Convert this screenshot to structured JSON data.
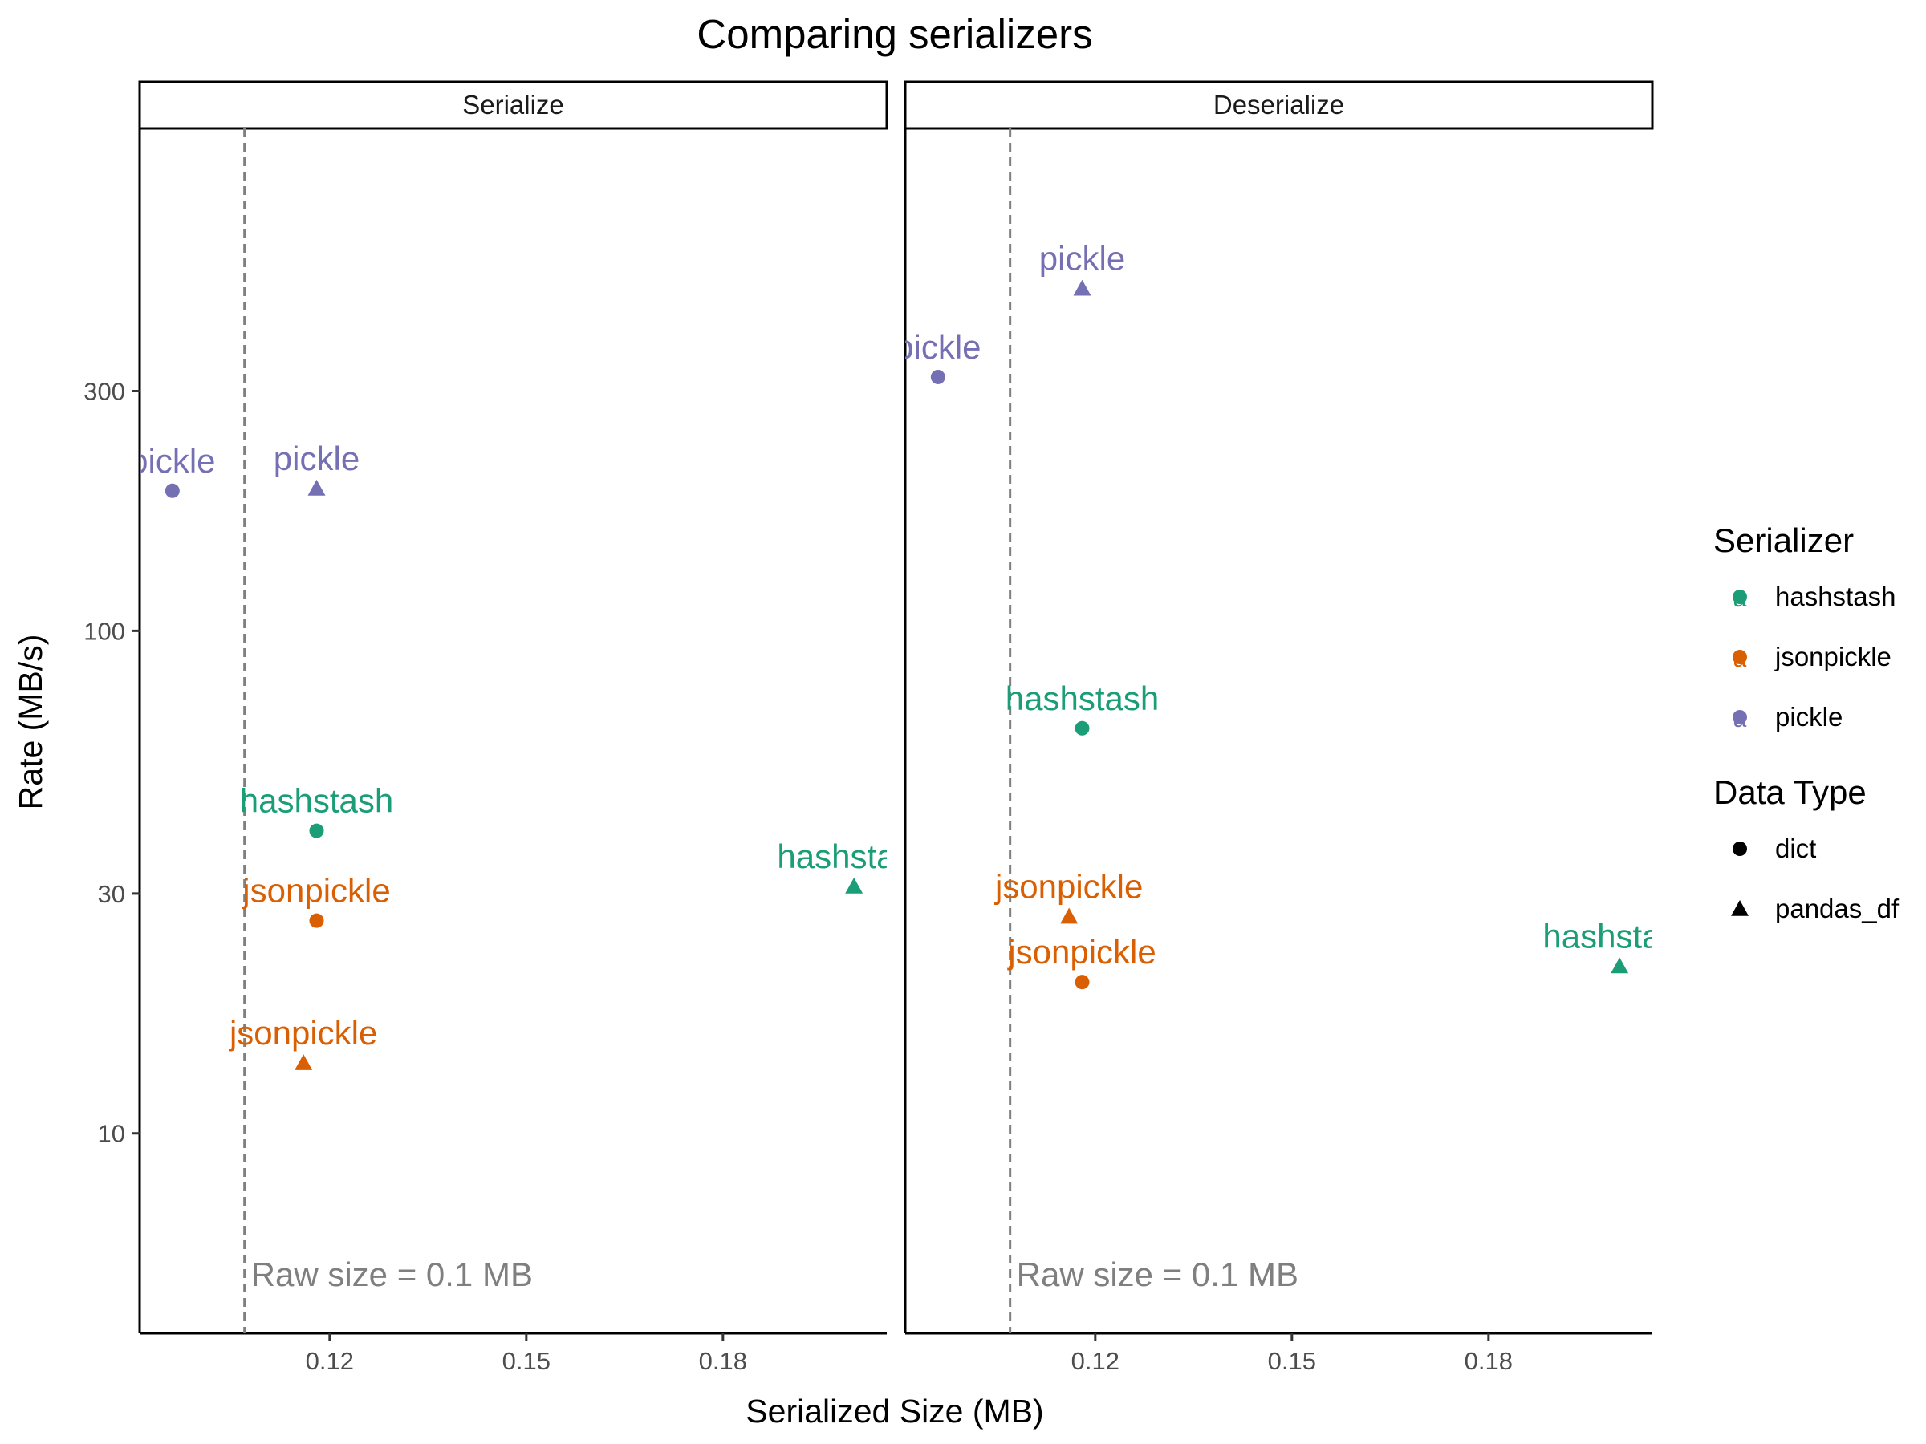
{
  "chart_data": {
    "type": "scatter",
    "title": "Comparing serializers",
    "xlabel": "Serialized Size (MB)",
    "ylabel": "Rate (MB/s)",
    "y_scale": "log10",
    "xlim": [
      0.091,
      0.205
    ],
    "ylim": [
      4.0,
      1000
    ],
    "x_ticks": [
      {
        "value": 0.12,
        "label": "0.12"
      },
      {
        "value": 0.15,
        "label": "0.15"
      },
      {
        "value": 0.18,
        "label": "0.18"
      }
    ],
    "y_ticks": [
      {
        "value": 10,
        "label": "10"
      },
      {
        "value": 30,
        "label": "30"
      },
      {
        "value": 100,
        "label": "100"
      },
      {
        "value": 300,
        "label": "300"
      }
    ],
    "grid": false,
    "reference_line": {
      "axis": "x",
      "value": 0.107,
      "label": "Raw size = 0.1 MB",
      "color": "#7f7f7f",
      "style": "dashed"
    },
    "colors": {
      "hashstash": "#1b9e77",
      "jsonpickle": "#d95f02",
      "pickle": "#7570b3"
    },
    "panels": [
      {
        "name": "Serialize",
        "points": [
          {
            "serializer": "pickle",
            "data_type": "dict",
            "x": 0.096,
            "y": 190
          },
          {
            "serializer": "pickle",
            "data_type": "pandas_df",
            "x": 0.118,
            "y": 192
          },
          {
            "serializer": "hashstash",
            "data_type": "dict",
            "x": 0.118,
            "y": 40
          },
          {
            "serializer": "hashstash",
            "data_type": "pandas_df",
            "x": 0.2,
            "y": 31
          },
          {
            "serializer": "jsonpickle",
            "data_type": "dict",
            "x": 0.118,
            "y": 26.5
          },
          {
            "serializer": "jsonpickle",
            "data_type": "pandas_df",
            "x": 0.116,
            "y": 13.8
          }
        ]
      },
      {
        "name": "Deserialize",
        "points": [
          {
            "serializer": "pickle",
            "data_type": "dict",
            "x": 0.096,
            "y": 320
          },
          {
            "serializer": "pickle",
            "data_type": "pandas_df",
            "x": 0.118,
            "y": 480
          },
          {
            "serializer": "hashstash",
            "data_type": "dict",
            "x": 0.118,
            "y": 64
          },
          {
            "serializer": "hashstash",
            "data_type": "pandas_df",
            "x": 0.2,
            "y": 21.5
          },
          {
            "serializer": "jsonpickle",
            "data_type": "dict",
            "x": 0.118,
            "y": 20
          },
          {
            "serializer": "jsonpickle",
            "data_type": "pandas_df",
            "x": 0.116,
            "y": 27
          }
        ]
      }
    ],
    "legend": {
      "placement": "right",
      "serializer_title": "Serializer",
      "serializers": [
        "hashstash",
        "jsonpickle",
        "pickle"
      ],
      "key_glyph_text": "a",
      "data_type_title": "Data Type",
      "data_types": [
        {
          "name": "dict",
          "shape": "circle"
        },
        {
          "name": "pandas_df",
          "shape": "triangle"
        }
      ]
    }
  }
}
